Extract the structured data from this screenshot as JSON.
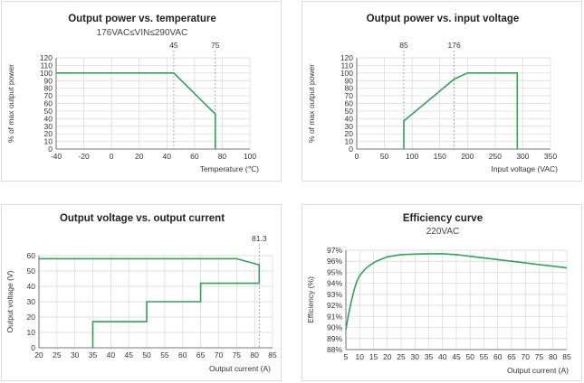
{
  "colors": {
    "series": "#2fa35a",
    "grid": "#d7d7d7",
    "axis": "#555555"
  },
  "chart_data": [
    {
      "type": "line",
      "title": "Output power vs. temperature",
      "subtitle": "176VAC≤VIN≤290VAC",
      "xlabel": "Temperature (℃)",
      "ylabel": "% of max output power",
      "xlim": [
        -40,
        100
      ],
      "ylim": [
        0,
        120
      ],
      "xticks": [
        -40,
        -20,
        0,
        20,
        40,
        60,
        80,
        100
      ],
      "yticks": [
        0,
        10,
        20,
        30,
        40,
        50,
        60,
        70,
        80,
        90,
        100,
        110,
        120
      ],
      "grid": true,
      "ref_lines": [
        {
          "x": 45,
          "label": "45"
        },
        {
          "x": 75,
          "label": "75"
        }
      ],
      "series": [
        {
          "x": [
            -40,
            45,
            75,
            75
          ],
          "y": [
            100,
            100,
            46,
            0
          ]
        }
      ]
    },
    {
      "type": "line",
      "title": "Output power vs. input voltage",
      "subtitle": "",
      "xlabel": "Input voltage (VAC)",
      "ylabel": "% of max output power",
      "xlim": [
        0,
        350
      ],
      "ylim": [
        0,
        120
      ],
      "xticks": [
        0,
        50,
        100,
        150,
        200,
        250,
        300,
        350
      ],
      "yticks": [
        0,
        10,
        20,
        30,
        40,
        50,
        60,
        70,
        80,
        90,
        100,
        110,
        120
      ],
      "grid": true,
      "ref_lines": [
        {
          "x": 85,
          "label": "85"
        },
        {
          "x": 176,
          "label": "176"
        }
      ],
      "series": [
        {
          "x": [
            85,
            85,
            176,
            200,
            290,
            290
          ],
          "y": [
            0,
            37,
            92,
            100,
            100,
            0
          ]
        }
      ]
    },
    {
      "type": "line",
      "title": "Output voltage vs. output current",
      "subtitle": "",
      "xlabel": "Output current (A)",
      "ylabel": "Output voltage (V)",
      "xlim": [
        20,
        85
      ],
      "ylim": [
        0,
        60
      ],
      "xticks": [
        20,
        25,
        30,
        35,
        40,
        45,
        50,
        55,
        60,
        65,
        70,
        75,
        80,
        85
      ],
      "yticks": [
        0,
        10,
        20,
        30,
        40,
        50,
        60
      ],
      "grid": true,
      "ref_lines": [
        {
          "x": 81.3,
          "label": "81.3"
        }
      ],
      "series": [
        {
          "x": [
            20,
            75,
            81.3,
            81.3
          ],
          "y": [
            58,
            58,
            54,
            42
          ]
        },
        {
          "x": [
            81.3,
            65,
            65,
            50,
            50,
            35,
            35
          ],
          "y": [
            42,
            42,
            30,
            30,
            17,
            17,
            0
          ]
        }
      ]
    },
    {
      "type": "line",
      "title": "Efficiency curve",
      "subtitle": "220VAC",
      "xlabel": "Output current (A)",
      "ylabel": "Efficiency (%)",
      "xlim": [
        5,
        85
      ],
      "ylim": [
        88,
        97
      ],
      "xticks": [
        5,
        10,
        15,
        20,
        25,
        30,
        35,
        40,
        45,
        50,
        55,
        60,
        65,
        70,
        75,
        80,
        85
      ],
      "yticks": [
        88,
        89,
        90,
        91,
        92,
        93,
        94,
        95,
        96,
        97
      ],
      "ytick_suffix": "%",
      "grid": true,
      "ref_lines": [],
      "series": [
        {
          "x": [
            5,
            6,
            7,
            8,
            9,
            10,
            12,
            14,
            16,
            18,
            20,
            25,
            30,
            35,
            40,
            45,
            50,
            55,
            60,
            65,
            70,
            75,
            80,
            85
          ],
          "y": [
            89.8,
            91.2,
            92.4,
            93.4,
            94.2,
            94.7,
            95.3,
            95.7,
            96.0,
            96.2,
            96.4,
            96.6,
            96.65,
            96.68,
            96.68,
            96.6,
            96.45,
            96.3,
            96.15,
            96.0,
            95.85,
            95.7,
            95.55,
            95.4
          ]
        }
      ]
    }
  ]
}
